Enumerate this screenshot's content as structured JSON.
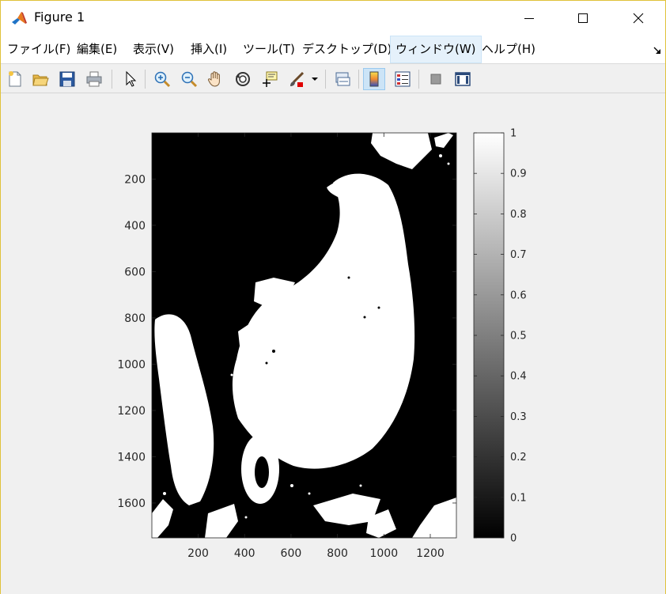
{
  "window": {
    "title": "Figure 1",
    "controls": {
      "minimize": "minimize-icon",
      "maximize": "maximize-icon",
      "close": "close-icon"
    }
  },
  "menu": {
    "items": [
      {
        "label": "ファイル(F)",
        "underline": "F"
      },
      {
        "label": "編集(E)",
        "underline": "E"
      },
      {
        "label": "表示(V)",
        "underline": "V"
      },
      {
        "label": "挿入(I)",
        "underline": "I"
      },
      {
        "label": "ツール(T)",
        "underline": "T"
      },
      {
        "label": "デスクトップ(D)",
        "underline": "D"
      },
      {
        "label": "ウィンドウ(W)",
        "underline": "W",
        "active": true
      },
      {
        "label": "ヘルプ(H)",
        "underline": "H"
      }
    ]
  },
  "toolbar": {
    "buttons": [
      "new-figure-icon",
      "open-file-icon",
      "save-icon",
      "print-icon",
      "edit-plot-pointer-icon",
      "zoom-in-icon",
      "zoom-out-icon",
      "pan-hand-icon",
      "rotate-3d-icon",
      "data-cursor-icon",
      "brush-icon",
      "brush-dropdown-icon",
      "link-plot-icon",
      "insert-colorbar-icon",
      "insert-legend-icon",
      "hide-plot-tools-icon",
      "show-plot-tools-icon"
    ],
    "pressed": "insert-colorbar-icon"
  },
  "colors": {
    "accent": "#0072bd",
    "menu_active_bg": "#e5f1fb",
    "figure_bg": "#f0f0f0",
    "plot_black": "#000000",
    "plot_white": "#ffffff"
  },
  "chart_data": {
    "type": "heatmap",
    "description": "binary mask image displayed with gray colormap",
    "colormap": "gray",
    "x_ticks": [
      "200",
      "400",
      "600",
      "800",
      "1000",
      "1200"
    ],
    "y_ticks": [
      "200",
      "400",
      "600",
      "800",
      "1000",
      "1200",
      "1400",
      "1600"
    ],
    "xlim": [
      0.5,
      1312.5
    ],
    "ylim": [
      0.5,
      1750.5
    ],
    "y_reversed": true,
    "colorbar_ticks": [
      "0",
      "0.1",
      "0.2",
      "0.3",
      "0.4",
      "0.5",
      "0.6",
      "0.7",
      "0.8",
      "0.9",
      "1"
    ],
    "clim": [
      0,
      1
    ],
    "values_present": [
      0,
      1
    ]
  }
}
